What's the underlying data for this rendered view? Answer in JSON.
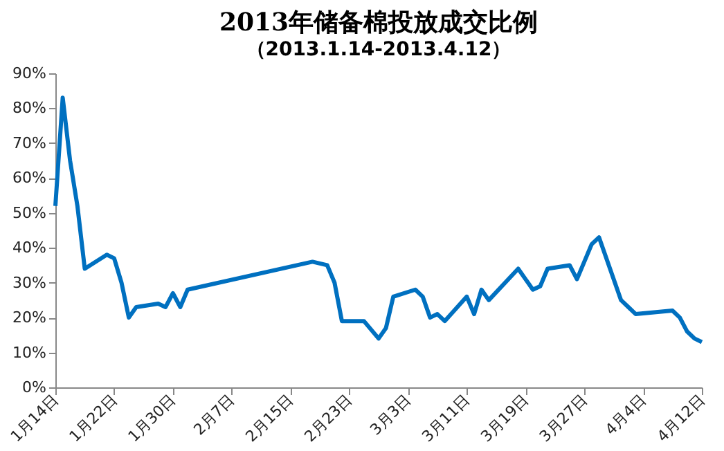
{
  "chart_data": {
    "type": "line",
    "title": "2013年储备棉投放成交比例",
    "subtitle": "（2013.1.14-2013.4.12）",
    "x": [
      "2013-01-14",
      "2013-01-15",
      "2013-01-16",
      "2013-01-17",
      "2013-01-18",
      "2013-01-21",
      "2013-01-22",
      "2013-01-23",
      "2013-01-24",
      "2013-01-25",
      "2013-01-28",
      "2013-01-29",
      "2013-01-30",
      "2013-01-31",
      "2013-02-01",
      "2013-02-18",
      "2013-02-20",
      "2013-02-21",
      "2013-02-22",
      "2013-02-25",
      "2013-02-27",
      "2013-02-28",
      "2013-03-01",
      "2013-03-04",
      "2013-03-05",
      "2013-03-06",
      "2013-03-07",
      "2013-03-08",
      "2013-03-11",
      "2013-03-12",
      "2013-03-13",
      "2013-03-14",
      "2013-03-18",
      "2013-03-20",
      "2013-03-21",
      "2013-03-22",
      "2013-03-25",
      "2013-03-26",
      "2013-03-28",
      "2013-03-29",
      "2013-04-01",
      "2013-04-02",
      "2013-04-03",
      "2013-04-08",
      "2013-04-09",
      "2013-04-10",
      "2013-04-11",
      "2013-04-12"
    ],
    "series": [
      {
        "color": "#0070c0",
        "values": [
          52,
          83,
          65,
          52,
          34,
          38,
          37,
          30,
          20,
          23,
          24,
          23,
          27,
          23,
          28,
          36,
          35,
          30,
          19,
          19,
          14,
          17,
          26,
          28,
          26,
          20,
          21,
          19,
          26,
          21,
          28,
          25,
          34,
          28,
          29,
          34,
          35,
          31,
          41,
          43,
          25,
          23,
          21,
          22,
          20,
          16,
          14,
          13
        ]
      }
    ],
    "xlim": [
      "2013-01-14",
      "2013-04-12"
    ],
    "xticks": [
      {
        "value": "2013-01-14",
        "label": "1月14日"
      },
      {
        "value": "2013-01-22",
        "label": "1月22日"
      },
      {
        "value": "2013-01-30",
        "label": "1月30日"
      },
      {
        "value": "2013-02-07",
        "label": "2月7日"
      },
      {
        "value": "2013-02-15",
        "label": "2月15日"
      },
      {
        "value": "2013-02-23",
        "label": "2月23日"
      },
      {
        "value": "2013-03-03",
        "label": "3月3日"
      },
      {
        "value": "2013-03-11",
        "label": "3月11日"
      },
      {
        "value": "2013-03-19",
        "label": "3月19日"
      },
      {
        "value": "2013-03-27",
        "label": "3月27日"
      },
      {
        "value": "2013-04-04",
        "label": "4月4日"
      },
      {
        "value": "2013-04-12",
        "label": "4月12日"
      }
    ],
    "ylim": [
      0,
      90
    ],
    "yticks": [
      {
        "value": 0,
        "label": "0%"
      },
      {
        "value": 10,
        "label": "10%"
      },
      {
        "value": 20,
        "label": "20%"
      },
      {
        "value": 30,
        "label": "30%"
      },
      {
        "value": 40,
        "label": "40%"
      },
      {
        "value": 50,
        "label": "50%"
      },
      {
        "value": 60,
        "label": "60%"
      },
      {
        "value": 70,
        "label": "70%"
      },
      {
        "value": 80,
        "label": "80%"
      },
      {
        "value": 90,
        "label": "90%"
      }
    ],
    "grid": false,
    "marker": "none",
    "line_style": "solid"
  }
}
